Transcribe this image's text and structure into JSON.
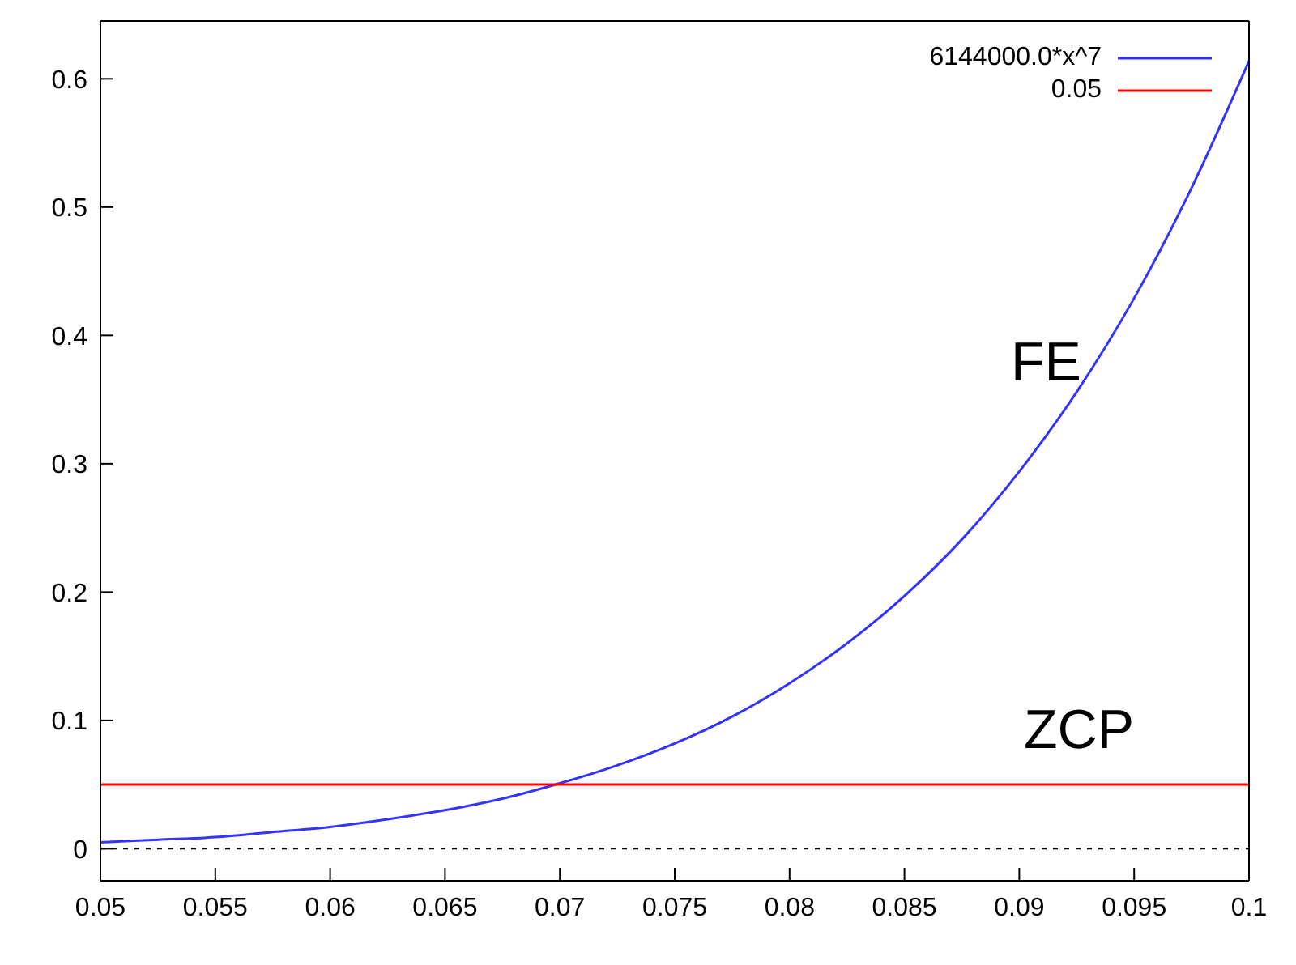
{
  "chart_data": {
    "type": "line",
    "xlim": [
      0.05,
      0.1
    ],
    "xticks": [
      0.05,
      0.055,
      0.06,
      0.065,
      0.07,
      0.075,
      0.08,
      0.085,
      0.09,
      0.095,
      0.1
    ],
    "ylim": [
      -0.025,
      0.645
    ],
    "yticks": [
      0,
      0.1,
      0.2,
      0.3,
      0.4,
      0.5,
      0.6
    ],
    "legend": "top right",
    "marker": "none",
    "line_style": "solid",
    "series": [
      {
        "name": "6144000.0*x^7",
        "color": "#3333ff",
        "x": [
          0.05,
          0.0525,
          0.055,
          0.0575,
          0.06,
          0.0625,
          0.065,
          0.0675,
          0.07,
          0.0725,
          0.075,
          0.0775,
          0.08,
          0.0825,
          0.085,
          0.0875,
          0.09,
          0.0925,
          0.095,
          0.0975,
          0.1
        ],
        "values": [
          0.005,
          0.007,
          0.009,
          0.013,
          0.017,
          0.023,
          0.03,
          0.039,
          0.051,
          0.065,
          0.082,
          0.103,
          0.129,
          0.16,
          0.197,
          0.241,
          0.294,
          0.356,
          0.429,
          0.515,
          0.614
        ]
      },
      {
        "name": "0.05",
        "color": "#ff0000",
        "x": [
          0.05,
          0.1
        ],
        "values": [
          0.05,
          0.05
        ]
      }
    ],
    "ref_lines": [
      {
        "axis": "y",
        "value": 0,
        "color": "#000000",
        "line_style": "dotted"
      }
    ],
    "annotations": [
      "FE",
      "ZCP"
    ]
  }
}
